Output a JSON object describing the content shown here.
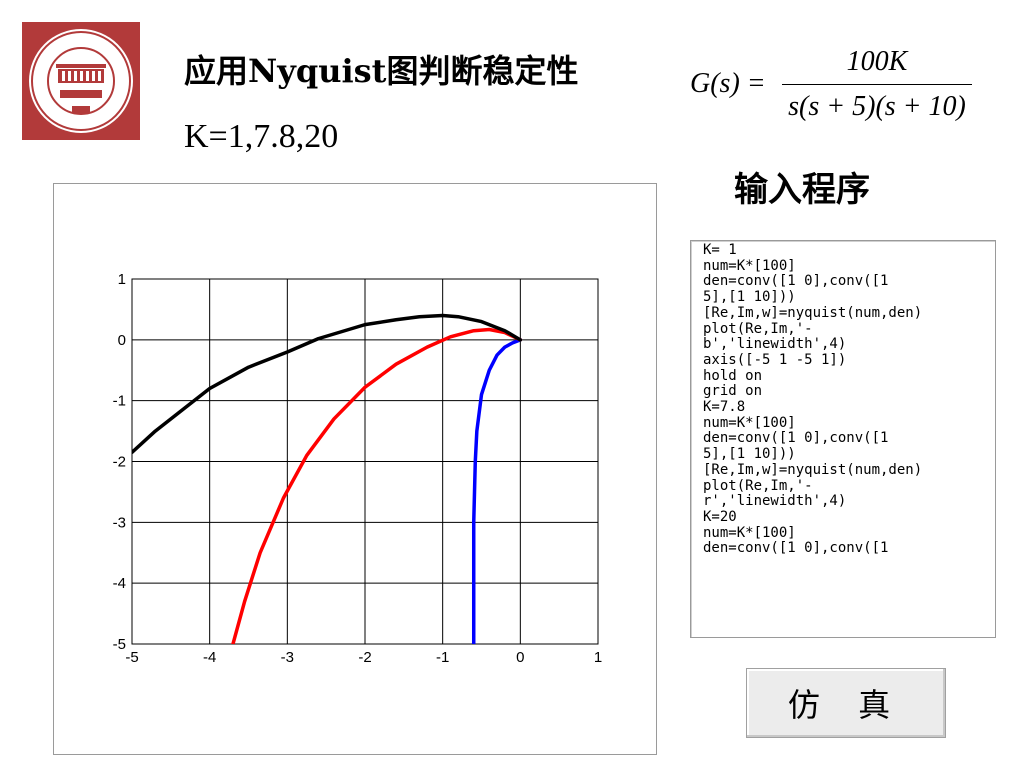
{
  "header": {
    "title": "应用Nyquist图判断稳定性",
    "subtitle": "K=1,7.8,20"
  },
  "formula": {
    "lhs": "G(s) =",
    "numerator": "100K",
    "denominator": "s(s + 5)(s + 10)"
  },
  "code_panel": {
    "heading": "输入程序",
    "code": "K= 1\nnum=K*[100]\nden=conv([1 0],conv([1\n5],[1 10]))\n[Re,Im,w]=nyquist(num,den)\nplot(Re,Im,'-\nb','linewidth',4)\naxis([-5 1 -5 1])\nhold on\ngrid on\nK=7.8\nnum=K*[100]\nden=conv([1 0],conv([1\n5],[1 10]))\n[Re,Im,w]=nyquist(num,den)\nplot(Re,Im,'-\nr','linewidth',4)\nK=20\nnum=K*[100]\nden=conv([1 0],conv([1"
  },
  "button": {
    "label": "仿 真"
  },
  "colors": {
    "k1": "#0000ff",
    "k78": "#ff0000",
    "k20": "#000000",
    "logo": "#b23a3a"
  },
  "chart_data": {
    "type": "line",
    "xlim": [
      -5,
      1
    ],
    "ylim": [
      -5,
      1
    ],
    "grid": true,
    "xticks": [
      "-5",
      "-4",
      "-3",
      "-2",
      "-1",
      "0",
      "1"
    ],
    "yticks": [
      "1",
      "0",
      "-1",
      "-2",
      "-3",
      "-4",
      "-5"
    ],
    "series": [
      {
        "color": "#0000ff",
        "x": [
          0,
          -0.1,
          -0.2,
          -0.3,
          -0.4,
          -0.5,
          -0.56,
          -0.58,
          -0.59,
          -0.6,
          -0.6,
          -0.6,
          -0.6
        ],
        "y": [
          0,
          -0.05,
          -0.12,
          -0.25,
          -0.5,
          -0.9,
          -1.5,
          -2.0,
          -2.5,
          -3.0,
          -3.5,
          -4.0,
          -5.0
        ]
      },
      {
        "color": "#ff0000",
        "x": [
          0,
          -0.2,
          -0.4,
          -0.6,
          -0.9,
          -1.2,
          -1.6,
          -2.0,
          -2.4,
          -2.75,
          -3.05,
          -3.35,
          -3.55,
          -3.7
        ],
        "y": [
          0,
          0.12,
          0.17,
          0.15,
          0.05,
          -0.12,
          -0.4,
          -0.78,
          -1.3,
          -1.9,
          -2.6,
          -3.5,
          -4.3,
          -5.0
        ]
      },
      {
        "color": "#000000",
        "x": [
          0,
          -0.2,
          -0.5,
          -0.8,
          -1.0,
          -1.3,
          -1.6,
          -2.0,
          -2.6,
          -3.0,
          -3.5,
          -4.0,
          -4.3,
          -4.7,
          -5.0
        ],
        "y": [
          0,
          0.15,
          0.3,
          0.38,
          0.4,
          0.38,
          0.33,
          0.25,
          0.02,
          -0.2,
          -0.45,
          -0.8,
          -1.1,
          -1.5,
          -1.85
        ]
      }
    ]
  }
}
